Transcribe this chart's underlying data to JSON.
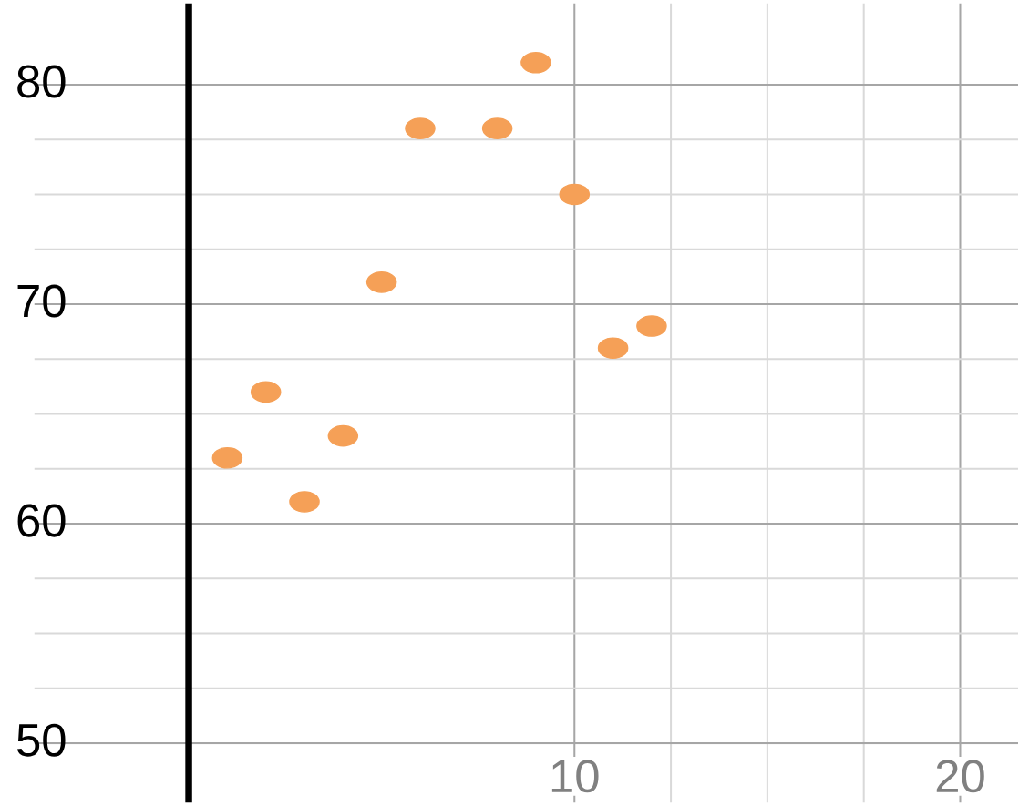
{
  "chart_data": {
    "type": "scatter",
    "x": [
      1,
      2,
      3,
      4,
      5,
      6,
      8,
      9,
      10,
      11,
      12
    ],
    "values": [
      63,
      66,
      61,
      64,
      71,
      78,
      78,
      81,
      75,
      68,
      69
    ],
    "color": "#f5a057",
    "marker": "circle",
    "xlim": [
      -4,
      21.5
    ],
    "ylim": [
      47.3,
      83.7
    ],
    "xticks": [
      10,
      20
    ],
    "yticks": [
      50,
      60,
      70,
      80
    ],
    "grid": true
  }
}
